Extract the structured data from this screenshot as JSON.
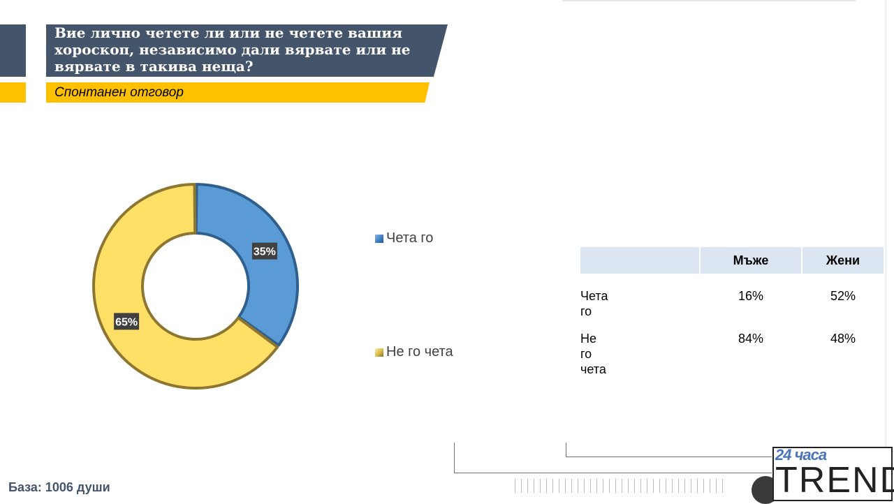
{
  "header": {
    "question": "Вие лично четете ли или не четете вашия хороскоп, независимо дали вярвате или не вярвате в такива неща?",
    "subtitle": "Спонтанен отговор"
  },
  "colors": {
    "navy": "#44546a",
    "yellow_accent": "#ffc000",
    "series_read": "#5b9bd5",
    "series_not_read": "#ffe066"
  },
  "chart_data": [
    {
      "type": "pie",
      "variant": "donut",
      "categories": [
        "Чета го",
        "Не го чета"
      ],
      "values": [
        35,
        65
      ],
      "data_labels": [
        "35%",
        "65%"
      ],
      "colors": [
        "#5b9bd5",
        "#ffe066"
      ],
      "legend_position": "right"
    },
    {
      "type": "table",
      "columns": [
        "",
        "Мъже",
        "Жени"
      ],
      "rows": [
        [
          "Чета го",
          "16%",
          "52%"
        ],
        [
          "Не го чета",
          "84%",
          "48%"
        ]
      ]
    }
  ],
  "legend": [
    {
      "label": "Чета го",
      "color": "#3f7ec4"
    },
    {
      "label": "Не го чета",
      "color": "#c8a83a"
    }
  ],
  "table": {
    "headers": [
      "Мъже",
      "Жени"
    ],
    "rows": [
      {
        "label": "Чета го",
        "men": "16%",
        "women": "52%"
      },
      {
        "label": "Не го чета",
        "men": "84%",
        "women": "48%"
      }
    ]
  },
  "footer": {
    "base": "База: 1006 души"
  },
  "logo": {
    "top": "24 часа",
    "main": "TREND"
  }
}
